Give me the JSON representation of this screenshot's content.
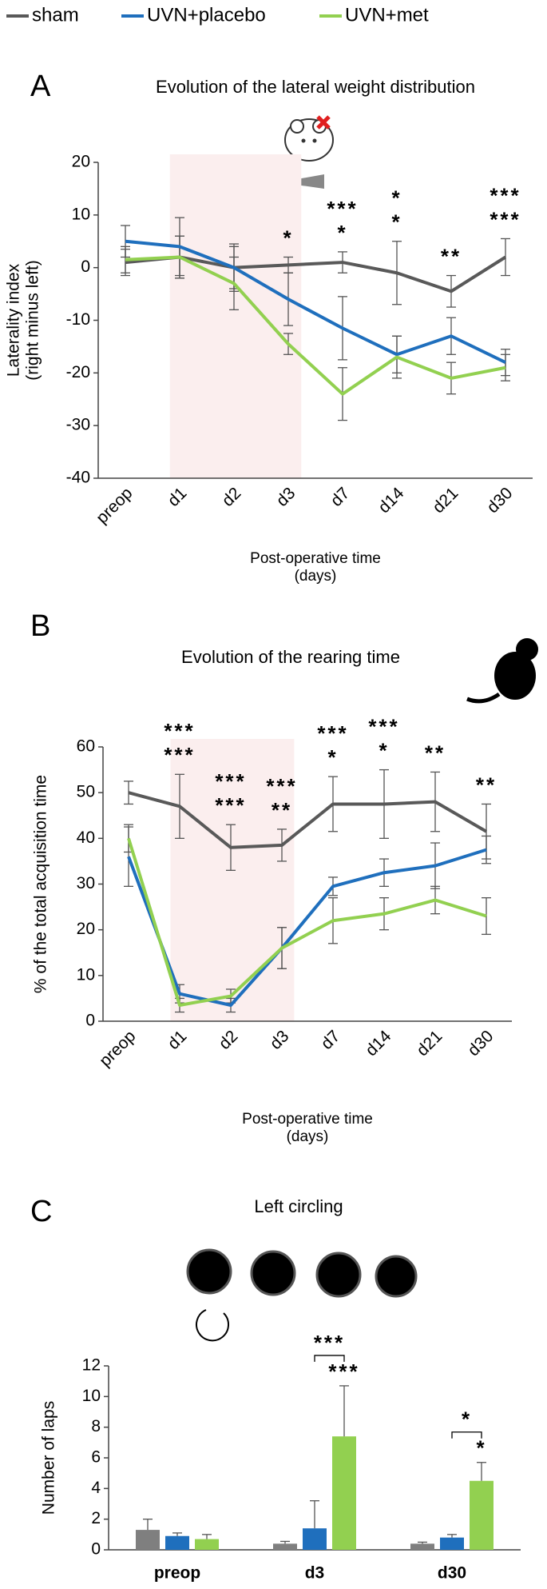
{
  "chart_data": [
    {
      "type": "line",
      "label": "A",
      "title": "Evolution of the lateral weight distribution",
      "ylabel": [
        "Laterality index",
        "(right minus left)"
      ],
      "xlabel": [
        "Post-operative time",
        "(days)"
      ],
      "categories": [
        "preop",
        "d1",
        "d2",
        "d3",
        "d7",
        "d14",
        "d21",
        "d30"
      ],
      "ylim": [
        -40,
        20
      ],
      "yticks": [
        -40,
        -30,
        -20,
        -10,
        0,
        10,
        20
      ],
      "series": [
        {
          "name": "sham",
          "color": "#595959",
          "values": [
            1,
            2,
            0,
            0.5,
            1,
            -1,
            -4.5,
            2
          ],
          "errors": [
            2.5,
            4,
            4.5,
            1.5,
            2,
            6,
            3,
            3.5
          ],
          "significance": [
            null,
            null,
            null,
            null,
            null,
            null,
            null,
            null
          ]
        },
        {
          "name": "UVN+placebo",
          "color": "#1f6fbd",
          "values": [
            5,
            4,
            0,
            -6,
            -11.5,
            -16.5,
            -13,
            -18
          ],
          "errors": [
            3,
            5.5,
            4,
            5,
            6,
            3.5,
            3.5,
            2.5
          ],
          "significance": [
            null,
            null,
            null,
            null,
            "*",
            "*",
            null,
            "***"
          ]
        },
        {
          "name": "UVN+met",
          "color": "#92d050",
          "values": [
            1.5,
            2,
            -3,
            -14.5,
            -24,
            -17,
            -21,
            -19
          ],
          "errors": [
            2.5,
            4,
            5,
            2,
            5,
            4,
            3,
            2.5
          ],
          "significance": [
            null,
            null,
            null,
            "*",
            "***",
            "*",
            "**",
            "***"
          ]
        }
      ]
    },
    {
      "type": "line",
      "label": "B",
      "title": "Evolution of the rearing time",
      "ylabel": [
        "% of the total acquisition time"
      ],
      "xlabel": [
        "Post-operative time",
        "(days)"
      ],
      "categories": [
        "preop",
        "d1",
        "d2",
        "d3",
        "d7",
        "d14",
        "d21",
        "d30"
      ],
      "ylim": [
        0,
        60
      ],
      "yticks": [
        0,
        10,
        20,
        30,
        40,
        50,
        60
      ],
      "series": [
        {
          "name": "sham",
          "color": "#595959",
          "values": [
            50,
            47,
            38,
            38.5,
            47.5,
            47.5,
            48,
            41.5
          ],
          "errors": [
            2.5,
            7,
            5,
            3.5,
            6,
            7.5,
            6.5,
            6
          ],
          "significance": [
            null,
            null,
            null,
            null,
            null,
            null,
            null,
            null
          ]
        },
        {
          "name": "UVN+placebo",
          "color": "#1f6fbd",
          "values": [
            36,
            6,
            3.5,
            16,
            29.5,
            32.5,
            34,
            37.5
          ],
          "errors": [
            6.5,
            2,
            1.5,
            4.5,
            2,
            3,
            5,
            3
          ],
          "significance": [
            null,
            "***",
            "***",
            "**",
            "*",
            "*",
            null,
            null
          ]
        },
        {
          "name": "UVN+met",
          "color": "#92d050",
          "values": [
            40,
            3.5,
            5.5,
            16,
            22,
            23.5,
            26.5,
            23
          ],
          "errors": [
            3,
            1.5,
            1.5,
            4.5,
            5,
            3.5,
            3,
            4
          ],
          "significance": [
            null,
            "***",
            "***",
            "***",
            "***",
            "***",
            "**",
            "**"
          ]
        }
      ]
    },
    {
      "type": "bar",
      "label": "C",
      "title": "Left circling",
      "ylabel": [
        "Number of laps"
      ],
      "categories": [
        "preop",
        "d3",
        "d30"
      ],
      "ylim": [
        0,
        12
      ],
      "yticks": [
        0,
        2,
        4,
        6,
        8,
        10,
        12
      ],
      "comparisons": [
        null,
        "***",
        "*"
      ],
      "comparison_color": "#c00000",
      "series": [
        {
          "name": "sham",
          "color": "#7f7f7f",
          "values": [
            1.3,
            0.4,
            0.4
          ],
          "errors": [
            0.7,
            0.15,
            0.1
          ],
          "significance": [
            null,
            null,
            null
          ]
        },
        {
          "name": "UVN+placebo",
          "color": "#1f6fbd",
          "values": [
            0.9,
            1.4,
            0.8
          ],
          "errors": [
            0.2,
            1.8,
            0.2
          ],
          "significance": [
            null,
            null,
            null
          ]
        },
        {
          "name": "UVN+met",
          "color": "#92d050",
          "values": [
            0.7,
            7.4,
            4.5
          ],
          "errors": [
            0.3,
            3.3,
            1.2
          ],
          "significance": [
            null,
            "***",
            "*"
          ]
        }
      ]
    }
  ]
}
